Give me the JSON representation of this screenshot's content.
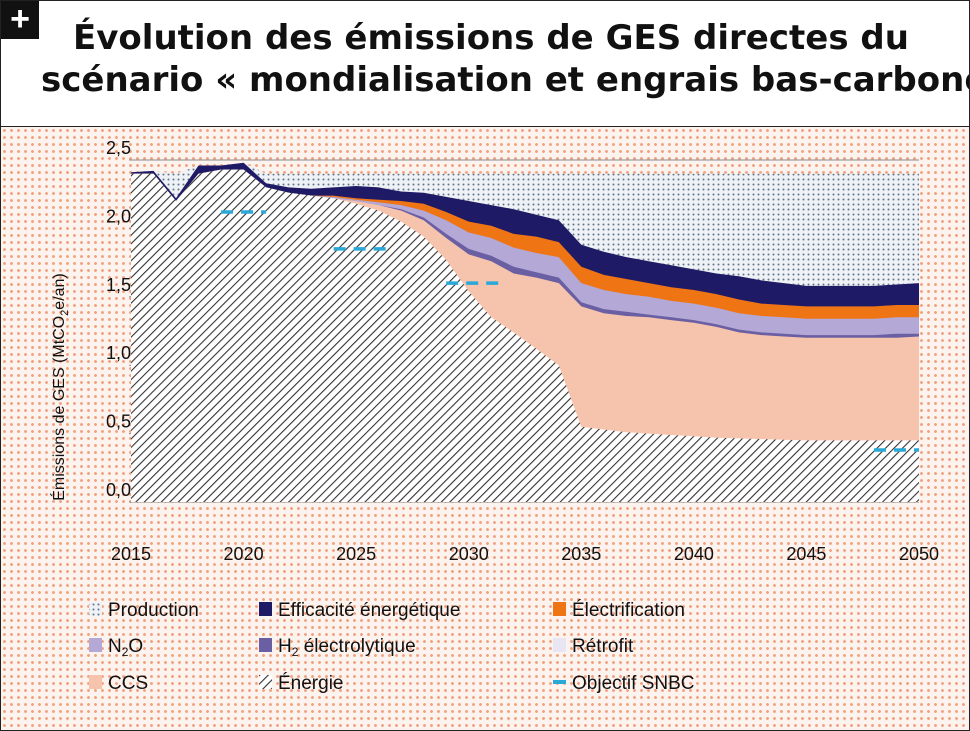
{
  "header": {
    "badge": "+",
    "title_line1": "Évolution des émissions de GES directes du",
    "title_line2": "scénario « mondialisation et engrais bas-carbone »"
  },
  "chart_data": {
    "type": "area",
    "title": "Évolution des émissions de GES directes du scénario « mondialisation et engrais bas-carbone »",
    "ylabel": "Émissions de GES (MtCO2e/an)",
    "ylabel_parts": [
      "Émissions de GES (MtCO",
      "2",
      "e/an)"
    ],
    "xlabel": "",
    "xlim": [
      2015,
      2050
    ],
    "ylim": [
      0,
      2.5
    ],
    "grid": true,
    "yticks": [
      {
        "v": 0,
        "label": "0,0"
      },
      {
        "v": 0.5,
        "label": "0,5"
      },
      {
        "v": 1.0,
        "label": "1,0"
      },
      {
        "v": 1.5,
        "label": "1,5"
      },
      {
        "v": 2.0,
        "label": "2,0"
      },
      {
        "v": 2.5,
        "label": "2,5"
      }
    ],
    "xticks": [
      2015,
      2020,
      2025,
      2030,
      2035,
      2040,
      2045,
      2050
    ],
    "years": [
      2015,
      2016,
      2017,
      2018,
      2019,
      2020,
      2021,
      2022,
      2023,
      2024,
      2025,
      2026,
      2027,
      2028,
      2029,
      2030,
      2031,
      2032,
      2033,
      2034,
      2035,
      2036,
      2037,
      2038,
      2039,
      2040,
      2041,
      2042,
      2043,
      2044,
      2045,
      2046,
      2047,
      2048,
      2049,
      2050
    ],
    "reference_level": 2.4,
    "series": [
      {
        "name": "Énergie",
        "color": "#333333",
        "values": [
          2.4,
          2.4,
          2.2,
          2.4,
          2.43,
          2.43,
          2.3,
          2.26,
          2.24,
          2.22,
          2.18,
          2.13,
          2.05,
          1.94,
          1.77,
          1.54,
          1.35,
          1.24,
          1.12,
          1.0,
          0.55,
          0.53,
          0.51,
          0.5,
          0.49,
          0.48,
          0.47,
          0.465,
          0.46,
          0.455,
          0.45,
          0.45,
          0.45,
          0.45,
          0.45,
          0.45
        ]
      },
      {
        "name": "CCS",
        "color": "#f6c3ad",
        "values": [
          2.4,
          2.4,
          2.2,
          2.4,
          2.43,
          2.43,
          2.3,
          2.26,
          2.24,
          2.22,
          2.2,
          2.17,
          2.13,
          2.06,
          1.93,
          1.81,
          1.76,
          1.67,
          1.64,
          1.6,
          1.43,
          1.38,
          1.36,
          1.35,
          1.33,
          1.31,
          1.28,
          1.24,
          1.22,
          1.21,
          1.2,
          1.2,
          1.2,
          1.2,
          1.2,
          1.21
        ]
      },
      {
        "name": "H2 électrolytique",
        "color": "#6b5fa3",
        "values": [
          2.4,
          2.4,
          2.2,
          2.4,
          2.43,
          2.43,
          2.3,
          2.26,
          2.24,
          2.22,
          2.2,
          2.17,
          2.14,
          2.08,
          1.96,
          1.85,
          1.8,
          1.72,
          1.68,
          1.64,
          1.46,
          1.41,
          1.39,
          1.37,
          1.35,
          1.33,
          1.3,
          1.26,
          1.24,
          1.23,
          1.22,
          1.22,
          1.22,
          1.22,
          1.23,
          1.23
        ]
      },
      {
        "name": "N2O",
        "color": "#b3a8d6",
        "values": [
          2.4,
          2.4,
          2.2,
          2.4,
          2.43,
          2.43,
          2.3,
          2.26,
          2.24,
          2.23,
          2.21,
          2.19,
          2.17,
          2.13,
          2.06,
          1.97,
          1.93,
          1.86,
          1.82,
          1.79,
          1.6,
          1.55,
          1.52,
          1.5,
          1.47,
          1.45,
          1.42,
          1.38,
          1.36,
          1.35,
          1.34,
          1.34,
          1.34,
          1.34,
          1.35,
          1.35
        ]
      },
      {
        "name": "Électrification",
        "color": "#ef7414",
        "values": [
          2.4,
          2.4,
          2.2,
          2.4,
          2.43,
          2.43,
          2.3,
          2.26,
          2.24,
          2.24,
          2.22,
          2.21,
          2.2,
          2.18,
          2.12,
          2.05,
          2.02,
          1.96,
          1.94,
          1.9,
          1.72,
          1.66,
          1.63,
          1.6,
          1.57,
          1.55,
          1.52,
          1.48,
          1.45,
          1.44,
          1.43,
          1.43,
          1.43,
          1.43,
          1.44,
          1.44
        ]
      },
      {
        "name": "Efficacité énergétique",
        "color": "#1f1a66",
        "values": [
          2.41,
          2.42,
          2.22,
          2.46,
          2.46,
          2.48,
          2.33,
          2.3,
          2.29,
          2.3,
          2.31,
          2.3,
          2.27,
          2.26,
          2.23,
          2.2,
          2.17,
          2.14,
          2.1,
          2.06,
          1.88,
          1.83,
          1.79,
          1.76,
          1.73,
          1.7,
          1.67,
          1.65,
          1.62,
          1.6,
          1.58,
          1.58,
          1.58,
          1.58,
          1.59,
          1.6
        ]
      },
      {
        "name": "Rétrofit",
        "color": "#e8e6f2",
        "values": []
      },
      {
        "name": "Production",
        "color": "#9fb0bf",
        "values": [
          2.4,
          2.4,
          2.4,
          2.4,
          2.4,
          2.4,
          2.4,
          2.4,
          2.4,
          2.4,
          2.4,
          2.4,
          2.4,
          2.4,
          2.4,
          2.4,
          2.4,
          2.4,
          2.4,
          2.4,
          2.4,
          2.4,
          2.4,
          2.4,
          2.4,
          2.4,
          2.4,
          2.4,
          2.4,
          2.4,
          2.4,
          2.4,
          2.4,
          2.4,
          2.4,
          2.4
        ]
      }
    ],
    "objectif_snbc": [
      {
        "x": [
          2019,
          2021
        ],
        "y": 2.12
      },
      {
        "x": [
          2024,
          2026.5
        ],
        "y": 1.85
      },
      {
        "x": [
          2029,
          2031.5
        ],
        "y": 1.6
      },
      {
        "x": [
          2048,
          2050
        ],
        "y": 0.38
      }
    ],
    "legend": [
      {
        "label": "Production",
        "color": "#9fb0bf",
        "kind": "dots"
      },
      {
        "label": "Efficacité énergétique",
        "color": "#1f1a66",
        "kind": "fill"
      },
      {
        "label": "Électrification",
        "color": "#ef7414",
        "kind": "fill"
      },
      {
        "label": "N2O",
        "color": "#b3a8d6",
        "kind": "fill",
        "label_parts": [
          "N",
          "2",
          "O"
        ]
      },
      {
        "label": "H2 électrolytique",
        "color": "#6b5fa3",
        "kind": "fill",
        "label_parts": [
          "H",
          "2",
          " électrolytique"
        ]
      },
      {
        "label": "Rétrofit",
        "color": "#e8e6f2",
        "kind": "fill"
      },
      {
        "label": "CCS",
        "color": "#f6c3ad",
        "kind": "fill"
      },
      {
        "label": "Énergie",
        "color": "#333333",
        "kind": "hatch"
      },
      {
        "label": "Objectif SNBC",
        "color": "#2aa9d8",
        "kind": "dash"
      }
    ]
  }
}
